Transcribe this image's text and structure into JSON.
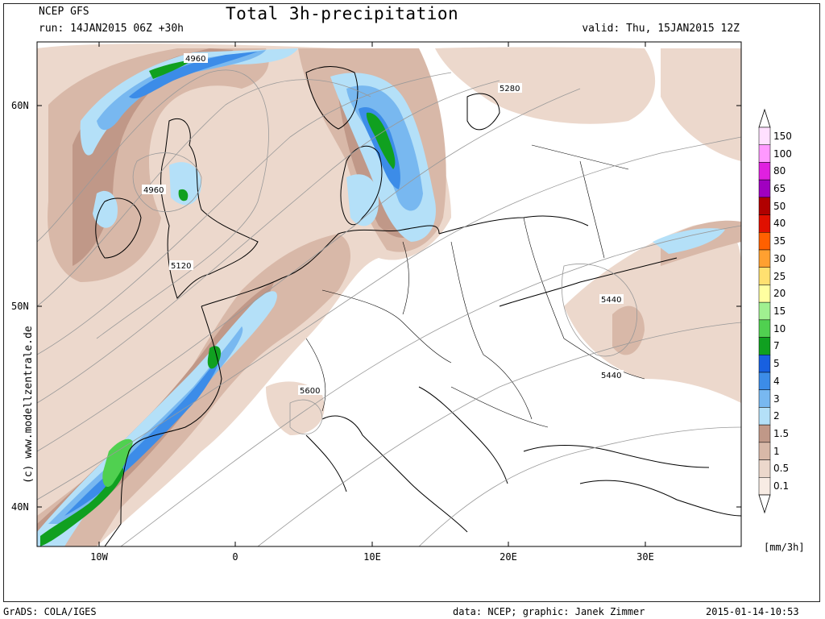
{
  "header": {
    "model": "NCEP GFS",
    "run": "run: 14JAN2015 06Z +30h",
    "title": "Total 3h-precipitation",
    "valid": "valid: Thu, 15JAN2015 12Z"
  },
  "footer": {
    "software": "GrADS: COLA/IGES",
    "credit": "data: NCEP; graphic: Janek Zimmer",
    "timestamp": "2015-01-14-10:53"
  },
  "copyright": "(c) www.modellzentrale.de",
  "axes": {
    "lat_labels": [
      "60N",
      "50N",
      "40N"
    ],
    "lon_labels": [
      "10W",
      "0",
      "10E",
      "20E",
      "30E"
    ]
  },
  "contour_labels": [
    "4960",
    "4960",
    "5120",
    "5280",
    "5440",
    "5440",
    "5600"
  ],
  "legend": {
    "units": "[mm/3h]",
    "levels": [
      {
        "label": "150",
        "color": "#ffe0ff"
      },
      {
        "label": "100",
        "color": "#ff99ff"
      },
      {
        "label": "80",
        "color": "#e020e0"
      },
      {
        "label": "65",
        "color": "#a000c0"
      },
      {
        "label": "50",
        "color": "#b00000"
      },
      {
        "label": "40",
        "color": "#e01000"
      },
      {
        "label": "35",
        "color": "#ff6000"
      },
      {
        "label": "30",
        "color": "#ffa030"
      },
      {
        "label": "25",
        "color": "#ffe070"
      },
      {
        "label": "20",
        "color": "#ffffa0"
      },
      {
        "label": "15",
        "color": "#a0f090"
      },
      {
        "label": "10",
        "color": "#50d050"
      },
      {
        "label": "7",
        "color": "#10a020"
      },
      {
        "label": "5",
        "color": "#1860e0"
      },
      {
        "label": "4",
        "color": "#3c8ce8"
      },
      {
        "label": "3",
        "color": "#78b8f0"
      },
      {
        "label": "2",
        "color": "#b4e0f8"
      },
      {
        "label": "1.5",
        "color": "#c09888"
      },
      {
        "label": "1",
        "color": "#d8b8a8"
      },
      {
        "label": "0.5",
        "color": "#ecd8cc"
      },
      {
        "label": "0.1",
        "color": "#f8ece4"
      }
    ]
  }
}
